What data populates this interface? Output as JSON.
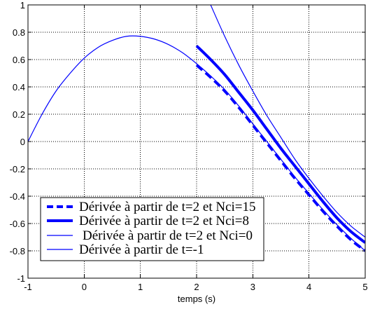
{
  "chart_data": {
    "type": "line",
    "xlabel": "temps (s)",
    "xlim": [
      -1,
      5
    ],
    "ylim": [
      -1,
      1
    ],
    "xticks": [
      -1,
      0,
      1,
      2,
      3,
      4,
      5
    ],
    "xtick_labels": [
      "-1",
      "0",
      "1",
      "2",
      "3",
      "4",
      "5"
    ],
    "yticks": [
      -1,
      -0.8,
      -0.6,
      -0.4,
      -0.2,
      0,
      0.2,
      0.4,
      0.6,
      0.8,
      1
    ],
    "ytick_labels": [
      "-1",
      "-0.8",
      "-0.6",
      "-0.4",
      "-0.2",
      "0",
      "0.2",
      "0.4",
      "0.6",
      "0.8",
      "1"
    ],
    "grid": true,
    "legend_position": "lower-left",
    "series": [
      {
        "name": "Dérivée à partir de t=2 et Nci=15",
        "color": "#0000ff",
        "x": [
          2,
          2.25,
          2.5,
          2.75,
          3,
          3.25,
          3.5,
          3.75,
          4,
          4.25,
          4.5,
          4.75,
          5
        ],
        "y": [
          0.56,
          0.47,
          0.37,
          0.25,
          0.12,
          -0.01,
          -0.14,
          -0.27,
          -0.39,
          -0.51,
          -0.62,
          -0.72,
          -0.8
        ]
      },
      {
        "name": "Dérivée à partir de t=2 et Nci=8",
        "color": "#0000ff",
        "x": [
          2,
          2.25,
          2.5,
          2.75,
          3,
          3.25,
          3.5,
          3.75,
          4,
          4.25,
          4.5,
          4.75,
          5
        ],
        "y": [
          0.7,
          0.6,
          0.49,
          0.36,
          0.23,
          0.09,
          -0.05,
          -0.18,
          -0.31,
          -0.44,
          -0.56,
          -0.66,
          -0.74
        ]
      },
      {
        "name": "Dérivée à partir de t=2 et Nci=0",
        "color": "#0000ff",
        "x": [
          2.25,
          2.5,
          2.75,
          3,
          3.25,
          3.5,
          3.75,
          4,
          4.25,
          4.5,
          4.75,
          5
        ],
        "y": [
          1.0,
          0.77,
          0.56,
          0.37,
          0.19,
          0.03,
          -0.13,
          -0.27,
          -0.4,
          -0.52,
          -0.62,
          -0.7
        ]
      },
      {
        "name": "Dérivée à partir de t=-1",
        "color": "#0000ff",
        "x": [
          -1,
          -0.75,
          -0.5,
          -0.25,
          0,
          0.25,
          0.5,
          0.75,
          1,
          1.25,
          1.5,
          1.75,
          2,
          2.25,
          2.5,
          2.75,
          3,
          3.25,
          3.5,
          3.75,
          4,
          4.25,
          4.5,
          4.75,
          5
        ],
        "y": [
          0.0,
          0.2,
          0.37,
          0.5,
          0.61,
          0.69,
          0.74,
          0.77,
          0.77,
          0.75,
          0.71,
          0.65,
          0.57,
          0.48,
          0.38,
          0.26,
          0.13,
          0.0,
          -0.13,
          -0.26,
          -0.38,
          -0.5,
          -0.61,
          -0.71,
          -0.8
        ]
      }
    ]
  }
}
